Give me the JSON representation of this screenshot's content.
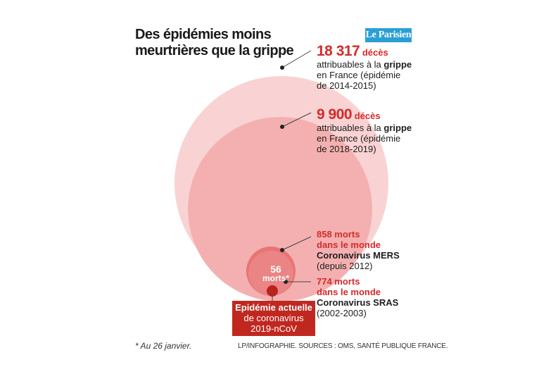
{
  "title": {
    "line1": "Des épidémies moins",
    "line2": "meurtrières que la grippe"
  },
  "logo": "Le Parisien",
  "items": [
    {
      "value": "18 317",
      "unit": "décès",
      "line1_pre": "attribuables à la ",
      "line1_bold": "grippe",
      "line2": "en France (épidémie",
      "line3": "de 2014-2015)",
      "color": "#f9d3d3"
    },
    {
      "value": "9 900",
      "unit": "décès",
      "line1_pre": "attribuables à la ",
      "line1_bold": "grippe",
      "line2": "en France (épidémie",
      "line3": "de 2018-2019)",
      "color": "#f4b0b0"
    },
    {
      "line1": "858 morts",
      "line2": "dans le monde",
      "line3": "Coronavirus MERS",
      "line4": "(depuis 2012)",
      "color": "#e87474"
    },
    {
      "line1": "774 morts",
      "line2": "dans le monde",
      "line3": "Coronavirus SRAS",
      "line4": "(2002-2003)",
      "color": "#ec8f8f"
    }
  ],
  "current": {
    "count": "56",
    "unit": "morts*",
    "badge_line1": "Epidémie actuelle",
    "badge_line2": "de coronavirus",
    "badge_line3": "2019-nCoV",
    "color": "#b8241c"
  },
  "footnote": "* Au 26 janvier.",
  "sources": "LP/INFOGRAPHIE.  SOURCES : OMS, SANTÉ PUBLIQUE FRANCE."
}
